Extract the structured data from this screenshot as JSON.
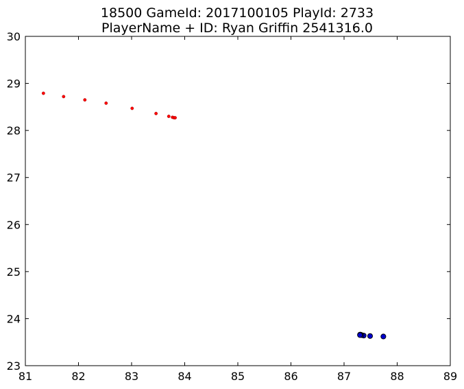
{
  "chart_data": {
    "type": "scatter",
    "title_line1": "18500 GameId: 2017100105 PlayId: 2733",
    "title_line2": "PlayerName + ID: Ryan Griffin 2541316.0",
    "xlabel": "",
    "ylabel": "",
    "xlim": [
      81,
      89
    ],
    "ylim": [
      23,
      30
    ],
    "xticks": [
      81,
      82,
      83,
      84,
      85,
      86,
      87,
      88,
      89
    ],
    "yticks": [
      23,
      24,
      25,
      26,
      27,
      28,
      29,
      30
    ],
    "grid": false,
    "series": [
      {
        "color": "#ff0000",
        "marker": "small-dot",
        "points": [
          {
            "x": 81.34,
            "y": 28.79
          },
          {
            "x": 81.72,
            "y": 28.72
          },
          {
            "x": 82.12,
            "y": 28.65
          },
          {
            "x": 82.52,
            "y": 28.58
          },
          {
            "x": 83.01,
            "y": 28.47
          },
          {
            "x": 83.46,
            "y": 28.36
          },
          {
            "x": 83.7,
            "y": 28.3
          },
          {
            "x": 83.77,
            "y": 28.28
          },
          {
            "x": 83.8,
            "y": 28.27
          },
          {
            "x": 83.82,
            "y": 28.27
          }
        ]
      },
      {
        "color": "#0000cc",
        "marker": "circle",
        "points": [
          {
            "x": 87.74,
            "y": 23.62
          },
          {
            "x": 87.49,
            "y": 23.63
          },
          {
            "x": 87.37,
            "y": 23.64
          },
          {
            "x": 87.33,
            "y": 23.65
          },
          {
            "x": 87.31,
            "y": 23.66
          },
          {
            "x": 87.3,
            "y": 23.66
          },
          {
            "x": 87.3,
            "y": 23.65
          }
        ]
      }
    ]
  }
}
